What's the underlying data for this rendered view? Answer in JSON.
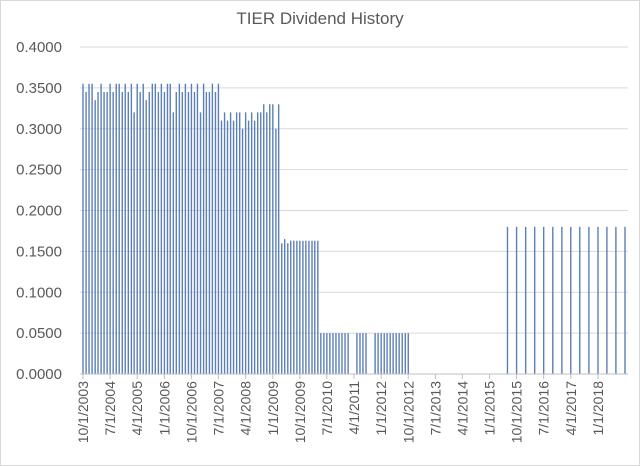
{
  "chart_data": {
    "type": "bar",
    "title": "TIER Dividend History",
    "xlabel": "",
    "ylabel": "",
    "ylim": [
      0,
      0.4
    ],
    "y_ticks": [
      "0.0000",
      "0.0500",
      "0.1000",
      "0.1500",
      "0.2000",
      "0.2500",
      "0.3000",
      "0.3500",
      "0.4000"
    ],
    "x_range": [
      "2003-10-01",
      "2018-10-01"
    ],
    "x_ticks": [
      "10/1/2003",
      "7/1/2004",
      "4/1/2005",
      "1/1/2006",
      "10/1/2006",
      "7/1/2007",
      "4/1/2008",
      "1/1/2009",
      "10/1/2009",
      "7/1/2010",
      "4/1/2011",
      "1/1/2012",
      "10/1/2012",
      "7/1/2013",
      "4/1/2014",
      "1/1/2015",
      "10/1/2015",
      "7/1/2016",
      "4/1/2017",
      "1/1/2018"
    ],
    "grid": true,
    "legend": "none",
    "bar_color": "#5b7fb8",
    "series": [
      {
        "points": [
          [
            "2003-10-01",
            0.355
          ],
          [
            "2003-11-01",
            0.345
          ],
          [
            "2003-12-01",
            0.355
          ],
          [
            "2004-01-01",
            0.355
          ],
          [
            "2004-02-01",
            0.335
          ],
          [
            "2004-03-01",
            0.345
          ],
          [
            "2004-04-01",
            0.355
          ],
          [
            "2004-05-01",
            0.345
          ],
          [
            "2004-06-01",
            0.345
          ],
          [
            "2004-07-01",
            0.355
          ],
          [
            "2004-08-01",
            0.345
          ],
          [
            "2004-09-01",
            0.355
          ],
          [
            "2004-10-01",
            0.355
          ],
          [
            "2004-11-01",
            0.345
          ],
          [
            "2004-12-01",
            0.355
          ],
          [
            "2005-01-01",
            0.345
          ],
          [
            "2005-02-01",
            0.355
          ],
          [
            "2005-03-01",
            0.32
          ],
          [
            "2005-04-01",
            0.355
          ],
          [
            "2005-05-01",
            0.345
          ],
          [
            "2005-06-01",
            0.355
          ],
          [
            "2005-07-01",
            0.335
          ],
          [
            "2005-08-01",
            0.345
          ],
          [
            "2005-09-01",
            0.355
          ],
          [
            "2005-10-01",
            0.355
          ],
          [
            "2005-11-01",
            0.345
          ],
          [
            "2005-12-01",
            0.355
          ],
          [
            "2006-01-01",
            0.345
          ],
          [
            "2006-02-01",
            0.355
          ],
          [
            "2006-03-01",
            0.355
          ],
          [
            "2006-04-01",
            0.32
          ],
          [
            "2006-05-01",
            0.345
          ],
          [
            "2006-06-01",
            0.355
          ],
          [
            "2006-07-01",
            0.345
          ],
          [
            "2006-08-01",
            0.355
          ],
          [
            "2006-09-01",
            0.345
          ],
          [
            "2006-10-01",
            0.355
          ],
          [
            "2006-11-01",
            0.345
          ],
          [
            "2006-12-01",
            0.355
          ],
          [
            "2007-01-01",
            0.32
          ],
          [
            "2007-02-01",
            0.355
          ],
          [
            "2007-03-01",
            0.345
          ],
          [
            "2007-04-01",
            0.345
          ],
          [
            "2007-05-01",
            0.355
          ],
          [
            "2007-06-01",
            0.345
          ],
          [
            "2007-07-01",
            0.355
          ],
          [
            "2007-08-01",
            0.31
          ],
          [
            "2007-09-01",
            0.32
          ],
          [
            "2007-10-01",
            0.31
          ],
          [
            "2007-11-01",
            0.32
          ],
          [
            "2007-12-01",
            0.31
          ],
          [
            "2008-01-01",
            0.32
          ],
          [
            "2008-02-01",
            0.32
          ],
          [
            "2008-03-01",
            0.3
          ],
          [
            "2008-04-01",
            0.32
          ],
          [
            "2008-05-01",
            0.31
          ],
          [
            "2008-06-01",
            0.32
          ],
          [
            "2008-07-01",
            0.31
          ],
          [
            "2008-08-01",
            0.32
          ],
          [
            "2008-09-01",
            0.32
          ],
          [
            "2008-10-01",
            0.33
          ],
          [
            "2008-11-01",
            0.32
          ],
          [
            "2008-12-01",
            0.33
          ],
          [
            "2009-01-01",
            0.33
          ],
          [
            "2009-02-01",
            0.3
          ],
          [
            "2009-03-01",
            0.33
          ],
          [
            "2009-04-01",
            0.16
          ],
          [
            "2009-05-01",
            0.165
          ],
          [
            "2009-06-01",
            0.16
          ],
          [
            "2009-07-01",
            0.163
          ],
          [
            "2009-08-01",
            0.163
          ],
          [
            "2009-09-01",
            0.163
          ],
          [
            "2009-10-01",
            0.163
          ],
          [
            "2009-11-01",
            0.163
          ],
          [
            "2009-12-01",
            0.163
          ],
          [
            "2010-01-01",
            0.163
          ],
          [
            "2010-02-01",
            0.163
          ],
          [
            "2010-03-01",
            0.163
          ],
          [
            "2010-04-01",
            0.163
          ],
          [
            "2010-05-01",
            0.05
          ],
          [
            "2010-06-01",
            0.05
          ],
          [
            "2010-07-01",
            0.05
          ],
          [
            "2010-08-01",
            0.05
          ],
          [
            "2010-09-01",
            0.05
          ],
          [
            "2010-10-01",
            0.05
          ],
          [
            "2010-11-01",
            0.05
          ],
          [
            "2010-12-01",
            0.05
          ],
          [
            "2011-01-01",
            0.05
          ],
          [
            "2011-02-01",
            0.05
          ],
          [
            "2011-05-01",
            0.05
          ],
          [
            "2011-06-01",
            0.05
          ],
          [
            "2011-07-01",
            0.05
          ],
          [
            "2011-08-01",
            0.05
          ],
          [
            "2011-11-01",
            0.05
          ],
          [
            "2011-12-01",
            0.05
          ],
          [
            "2012-01-01",
            0.05
          ],
          [
            "2012-02-01",
            0.05
          ],
          [
            "2012-03-01",
            0.05
          ],
          [
            "2012-04-01",
            0.05
          ],
          [
            "2012-05-01",
            0.05
          ],
          [
            "2012-06-01",
            0.05
          ],
          [
            "2012-07-01",
            0.05
          ],
          [
            "2012-08-01",
            0.05
          ],
          [
            "2012-09-01",
            0.05
          ],
          [
            "2012-10-01",
            0.05
          ],
          [
            "2015-07-01",
            0.18
          ],
          [
            "2015-10-01",
            0.18
          ],
          [
            "2016-01-01",
            0.18
          ],
          [
            "2016-04-01",
            0.18
          ],
          [
            "2016-07-01",
            0.18
          ],
          [
            "2016-10-01",
            0.18
          ],
          [
            "2017-01-01",
            0.18
          ],
          [
            "2017-04-01",
            0.18
          ],
          [
            "2017-07-01",
            0.18
          ],
          [
            "2017-10-01",
            0.18
          ],
          [
            "2018-01-01",
            0.18
          ],
          [
            "2018-04-01",
            0.18
          ],
          [
            "2018-07-01",
            0.18
          ],
          [
            "2018-10-01",
            0.18
          ]
        ]
      }
    ]
  }
}
